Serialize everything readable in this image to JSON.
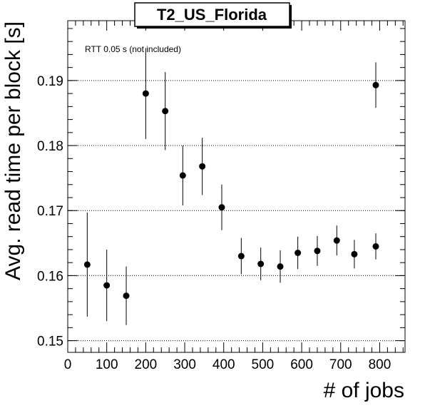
{
  "chart_data": {
    "type": "scatter",
    "title": "T2_US_Florida",
    "xlabel": "# of jobs",
    "ylabel": "Avg. read time per block [s]",
    "annotation": "RTT 0.05 s (not included)",
    "xlim": [
      0,
      865
    ],
    "ylim": [
      0.1482,
      0.1992
    ],
    "x_ticks": [
      0,
      100,
      200,
      300,
      400,
      500,
      600,
      700,
      800
    ],
    "y_ticks": [
      0.15,
      0.16,
      0.17,
      0.18,
      0.19
    ],
    "y_grid": true,
    "x_grid": false,
    "legend": "none",
    "marker_color": "#000000",
    "points": [
      {
        "x": 50,
        "y": 0.1617,
        "err": 0.008
      },
      {
        "x": 100,
        "y": 0.1585,
        "err": 0.0055
      },
      {
        "x": 150,
        "y": 0.1569,
        "err": 0.0045
      },
      {
        "x": 200,
        "y": 0.188,
        "err": 0.007
      },
      {
        "x": 250,
        "y": 0.1853,
        "err": 0.006
      },
      {
        "x": 295,
        "y": 0.1754,
        "err": 0.0046
      },
      {
        "x": 345,
        "y": 0.1768,
        "err": 0.0044
      },
      {
        "x": 395,
        "y": 0.1705,
        "err": 0.0035
      },
      {
        "x": 445,
        "y": 0.163,
        "err": 0.0028
      },
      {
        "x": 495,
        "y": 0.1618,
        "err": 0.0025
      },
      {
        "x": 545,
        "y": 0.1614,
        "err": 0.0025
      },
      {
        "x": 590,
        "y": 0.1635,
        "err": 0.0025
      },
      {
        "x": 640,
        "y": 0.1638,
        "err": 0.0023
      },
      {
        "x": 690,
        "y": 0.1654,
        "err": 0.0023
      },
      {
        "x": 735,
        "y": 0.1633,
        "err": 0.0022
      },
      {
        "x": 790,
        "y": 0.1645,
        "err": 0.002
      },
      {
        "x": 790,
        "y": 0.1893,
        "err": 0.0035
      }
    ]
  }
}
